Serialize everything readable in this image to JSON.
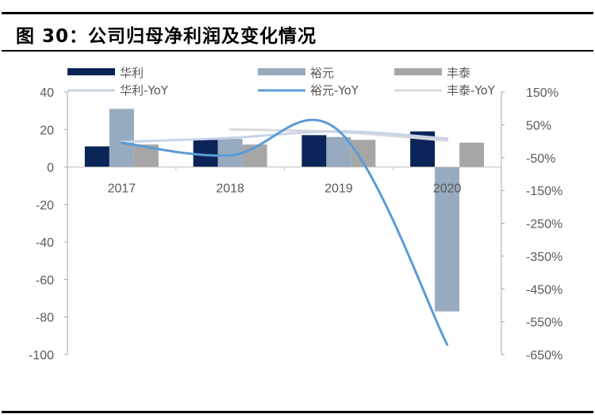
{
  "header": {
    "title": "图 30：公司归母净利润及变化情况"
  },
  "chart_data": {
    "type": "bar",
    "title": "图 30：公司归母净利润及变化情况",
    "categories": [
      "2017",
      "2018",
      "2019",
      "2020"
    ],
    "series": [
      {
        "name": "华利",
        "type": "bar",
        "axis": "left",
        "color": "#0b2458",
        "values": [
          11,
          14.5,
          17,
          19
        ]
      },
      {
        "name": "裕元",
        "type": "bar",
        "axis": "left",
        "color": "#98aac0",
        "values": [
          31,
          15,
          16,
          -77
        ]
      },
      {
        "name": "丰泰",
        "type": "bar",
        "axis": "left",
        "color": "#a6a6a6",
        "values": [
          12,
          12,
          14.5,
          13
        ]
      },
      {
        "name": "华利-YoY",
        "type": "line",
        "axis": "right",
        "color": "#c9d3e8",
        "values": [
          -2,
          10,
          30,
          8
        ]
      },
      {
        "name": "裕元-YoY",
        "type": "line",
        "axis": "right",
        "color": "#5b9bd5",
        "values": [
          -5,
          -43,
          32,
          -620
        ]
      },
      {
        "name": "丰泰-YoY",
        "type": "line",
        "axis": "right",
        "color": "#d9d9d9",
        "values": [
          null,
          36,
          28,
          2
        ]
      }
    ],
    "left_axis": {
      "ylim": [
        -100,
        40
      ],
      "ticks": [
        "40",
        "20",
        "0",
        "-20",
        "-40",
        "-60",
        "-80",
        "-100"
      ]
    },
    "right_axis": {
      "ylim": [
        -650,
        150
      ],
      "ticks": [
        "150%",
        "50%",
        "-50%",
        "-150%",
        "-250%",
        "-350%",
        "-450%",
        "-550%",
        "-650%"
      ]
    },
    "xlabel": "",
    "ylabel": "",
    "grid": false,
    "legend_position": "top"
  },
  "legend": {
    "items": [
      {
        "label": "华利",
        "kind": "bar",
        "color": "#0b2458"
      },
      {
        "label": "裕元",
        "kind": "bar",
        "color": "#98aac0"
      },
      {
        "label": "丰泰",
        "kind": "bar",
        "color": "#a6a6a6"
      },
      {
        "label": "华利-YoY",
        "kind": "line",
        "color": "#c9d3e8"
      },
      {
        "label": "裕元-YoY",
        "kind": "line",
        "color": "#5b9bd5"
      },
      {
        "label": "丰泰-YoY",
        "kind": "line",
        "color": "#d9d9d9"
      }
    ]
  }
}
